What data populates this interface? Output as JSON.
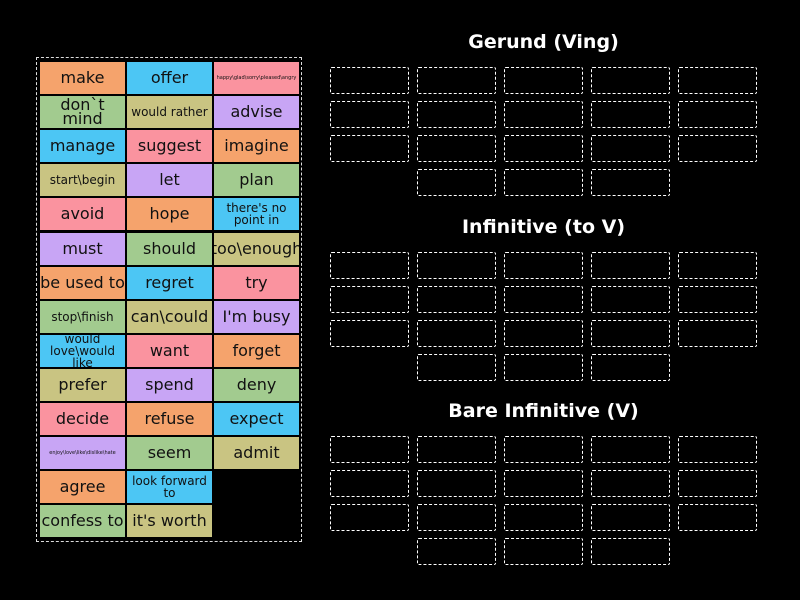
{
  "colors": {
    "orange": "#f5a36c",
    "blue": "#4cc6f4",
    "pink": "#fa939f",
    "green": "#a2cb8f",
    "olive": "#c9c482",
    "purple": "#c8a5f5"
  },
  "tiles": [
    [
      "make",
      "orange"
    ],
    [
      "offer",
      "blue"
    ],
    [
      "happy\\glad\\sorry\\pleased\\angry",
      "pink"
    ],
    [
      "don`t mind",
      "green"
    ],
    [
      "would rather",
      "olive"
    ],
    [
      "advise",
      "purple"
    ],
    [
      "manage",
      "blue"
    ],
    [
      "suggest",
      "pink"
    ],
    [
      "imagine",
      "orange"
    ],
    [
      "start\\begin",
      "olive"
    ],
    [
      "let",
      "purple"
    ],
    [
      "plan",
      "green"
    ],
    [
      "avoid",
      "pink"
    ],
    [
      "hope",
      "orange"
    ],
    [
      "there's no point in",
      "blue"
    ],
    [
      "must",
      "purple"
    ],
    [
      "should",
      "green"
    ],
    [
      "too\\enough",
      "olive"
    ],
    [
      "be used to",
      "orange"
    ],
    [
      "regret",
      "blue"
    ],
    [
      "try",
      "pink"
    ],
    [
      "stop\\finish",
      "green"
    ],
    [
      "can\\could",
      "olive"
    ],
    [
      "I'm busy",
      "purple"
    ],
    [
      "would love\\would like",
      "blue"
    ],
    [
      "want",
      "pink"
    ],
    [
      "forget",
      "orange"
    ],
    [
      "prefer",
      "olive"
    ],
    [
      "spend",
      "purple"
    ],
    [
      "deny",
      "green"
    ],
    [
      "decide",
      "pink"
    ],
    [
      "refuse",
      "orange"
    ],
    [
      "expect",
      "blue"
    ],
    [
      "enjoy\\love\\like\\dislike\\hate",
      "purple"
    ],
    [
      "seem",
      "green"
    ],
    [
      "admit",
      "olive"
    ],
    [
      "agree",
      "orange"
    ],
    [
      "look forward to",
      "blue"
    ],
    [
      "confess to",
      "green"
    ],
    [
      "it's worth",
      "olive"
    ]
  ],
  "groups": [
    {
      "title": "Gerund (Ving)"
    },
    {
      "title": "Infinitive (to V)"
    },
    {
      "title": "Bare Infinitive (V)"
    }
  ]
}
